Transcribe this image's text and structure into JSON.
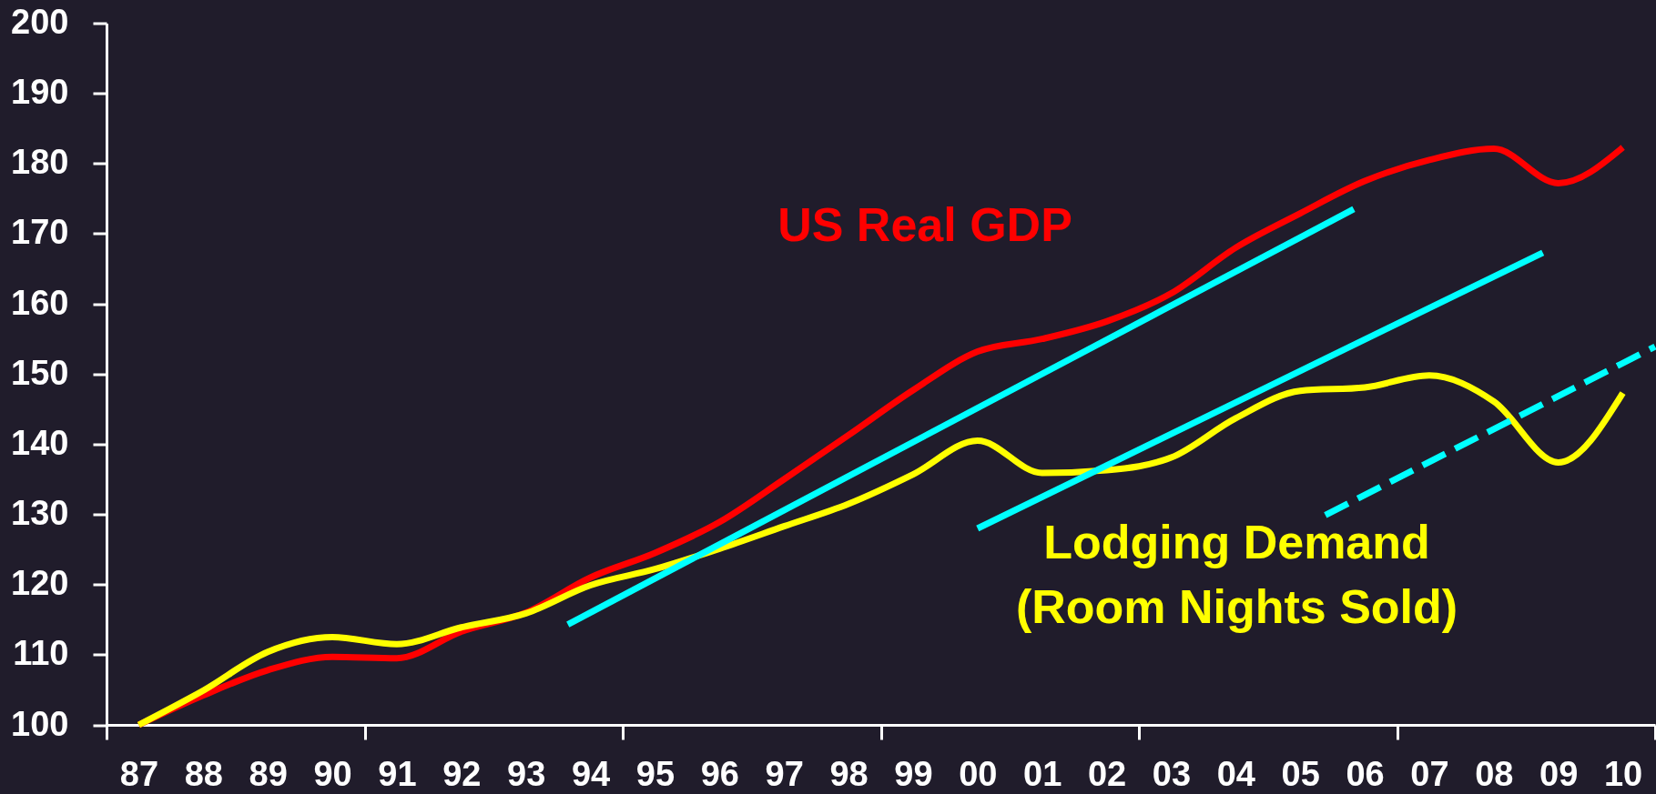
{
  "chart_data": {
    "type": "line",
    "x": [
      1987,
      1988,
      1989,
      1990,
      1991,
      1992,
      1993,
      1994,
      1995,
      1996,
      1997,
      1998,
      1999,
      2000,
      2001,
      2002,
      2003,
      2004,
      2005,
      2006,
      2007,
      2008,
      2009,
      2010
    ],
    "xlim": [
      1986.5,
      2010.5
    ],
    "xticks": [
      {
        "value": 1986.5,
        "label": null
      },
      {
        "value": 1987,
        "label": "87"
      },
      {
        "value": 1988,
        "label": "88"
      },
      {
        "value": 1989,
        "label": "89"
      },
      {
        "value": 1990,
        "label": "90"
      },
      {
        "value": 1990.5,
        "label": null
      },
      {
        "value": 1991,
        "label": "91"
      },
      {
        "value": 1992,
        "label": "92"
      },
      {
        "value": 1993,
        "label": "93"
      },
      {
        "value": 1994,
        "label": "94"
      },
      {
        "value": 1994.5,
        "label": null
      },
      {
        "value": 1995,
        "label": "95"
      },
      {
        "value": 1996,
        "label": "96"
      },
      {
        "value": 1997,
        "label": "97"
      },
      {
        "value": 1998,
        "label": "98"
      },
      {
        "value": 1998.5,
        "label": null
      },
      {
        "value": 1999,
        "label": "99"
      },
      {
        "value": 2000,
        "label": "00"
      },
      {
        "value": 2001,
        "label": "01"
      },
      {
        "value": 2002,
        "label": "02"
      },
      {
        "value": 2002.5,
        "label": null
      },
      {
        "value": 2003,
        "label": "03"
      },
      {
        "value": 2004,
        "label": "04"
      },
      {
        "value": 2005,
        "label": "05"
      },
      {
        "value": 2006,
        "label": "06"
      },
      {
        "value": 2006.5,
        "label": null
      },
      {
        "value": 2007,
        "label": "07"
      },
      {
        "value": 2008,
        "label": "08"
      },
      {
        "value": 2009,
        "label": "09"
      },
      {
        "value": 2010,
        "label": "10"
      },
      {
        "value": 2010.5,
        "label": null
      }
    ],
    "ylim": [
      100,
      200
    ],
    "yticks": [
      100,
      110,
      120,
      130,
      140,
      150,
      160,
      170,
      180,
      190,
      200
    ],
    "line_style": "solid",
    "series": [
      {
        "name": "US Real GDP",
        "color": "#ff0000",
        "values": [
          100,
          104.2,
          107.8,
          109.7,
          109.5,
          113.3,
          116.0,
          121.0,
          124.5,
          128.9,
          135.0,
          141.3,
          147.7,
          153.2,
          155.0,
          157.5,
          161.5,
          168.0,
          172.9,
          177.5,
          180.5,
          182.1,
          177.2,
          182.3
        ]
      },
      {
        "name": "Lodging Demand\n(Room Nights Sold)",
        "color": "#ffff00",
        "values": [
          100,
          104.9,
          110.4,
          112.5,
          111.5,
          113.9,
          115.9,
          119.9,
          122.2,
          125.1,
          128.3,
          131.5,
          135.7,
          140.5,
          135.9,
          136.3,
          138.1,
          143.7,
          147.6,
          148.1,
          149.8,
          146.1,
          137.4,
          147.3
        ]
      },
      {
        "type": "line",
        "color": "#00ffff",
        "x": [
          1993.65,
          2005.83
        ],
        "values": [
          114.3,
          173.5
        ]
      },
      {
        "type": "line",
        "color": "#00ffff",
        "x": [
          2000.0,
          2008.76
        ],
        "values": [
          128.0,
          167.3
        ]
      },
      {
        "type": "line",
        "color": "#00ffff",
        "x": [
          2005.39,
          2010.5
        ],
        "values": [
          129.9,
          153.9
        ],
        "line_style": "dashed"
      }
    ]
  }
}
